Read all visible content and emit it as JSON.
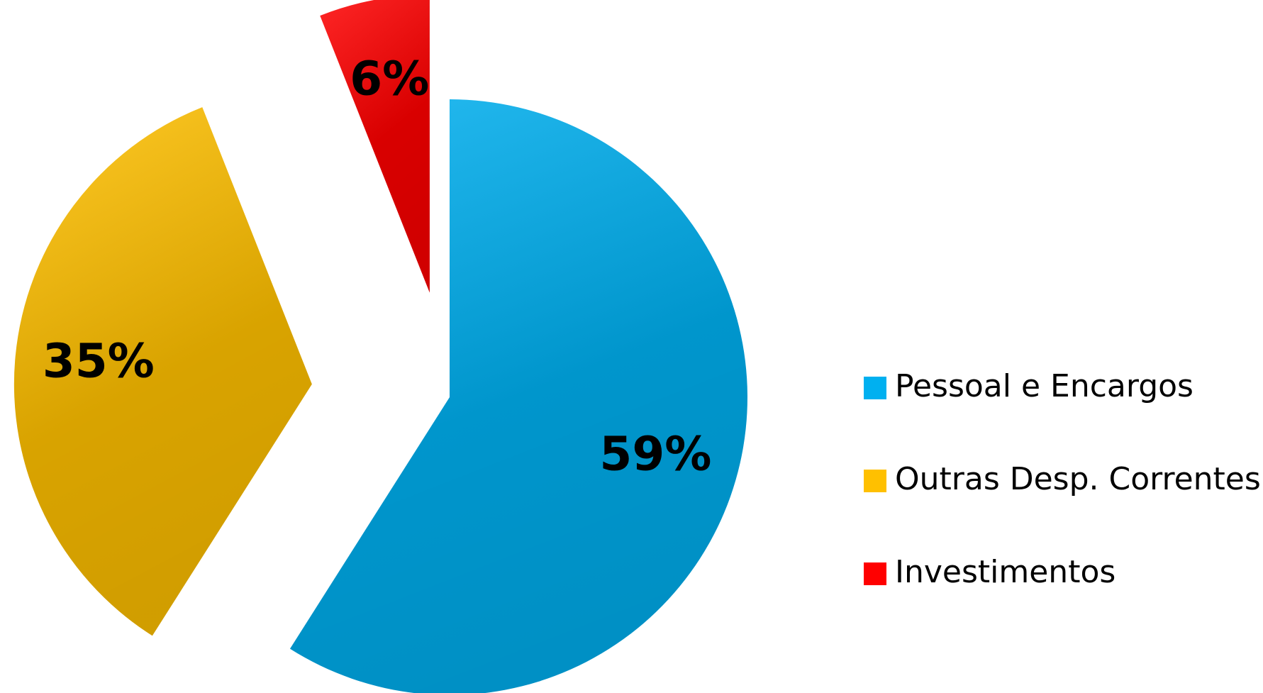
{
  "chart_data": {
    "type": "pie",
    "categories": [
      "Pessoal e Encargos",
      "Outras Desp. Correntes",
      "Investimentos"
    ],
    "values": [
      59,
      35,
      6
    ],
    "value_labels": [
      "59%",
      "35%",
      "6%"
    ],
    "colors": [
      "#00b0f0",
      "#ffc000",
      "#ff0000"
    ],
    "legend": "right"
  }
}
